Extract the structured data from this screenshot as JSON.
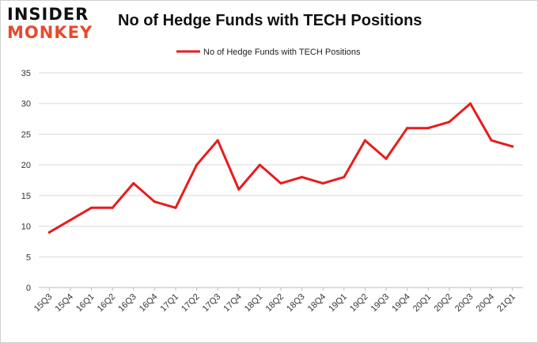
{
  "logo": {
    "line1": "INSIDER",
    "line2": "MONKEY"
  },
  "chart_data": {
    "type": "line",
    "title": "No of Hedge Funds with TECH Positions",
    "xlabel": "",
    "ylabel": "",
    "categories": [
      "15Q3",
      "15Q4",
      "16Q1",
      "16Q2",
      "16Q3",
      "16Q4",
      "17Q1",
      "17Q2",
      "17Q3",
      "17Q4",
      "18Q1",
      "18Q2",
      "18Q3",
      "18Q4",
      "19Q1",
      "19Q2",
      "19Q3",
      "19Q4",
      "20Q1",
      "20Q2",
      "20Q3",
      "20Q4",
      "21Q1"
    ],
    "series": [
      {
        "name": "No of Hedge Funds with TECH  Positions",
        "color": "#e81c1c",
        "values": [
          9,
          11,
          13,
          13,
          17,
          14,
          13,
          20,
          24,
          16,
          20,
          17,
          18,
          17,
          18,
          24,
          21,
          26,
          26,
          27,
          30,
          24,
          23
        ]
      }
    ],
    "ylim": [
      0,
      35
    ],
    "yticks": [
      0,
      5,
      10,
      15,
      20,
      25,
      30,
      35
    ],
    "grid": true,
    "legend": "top-center"
  }
}
